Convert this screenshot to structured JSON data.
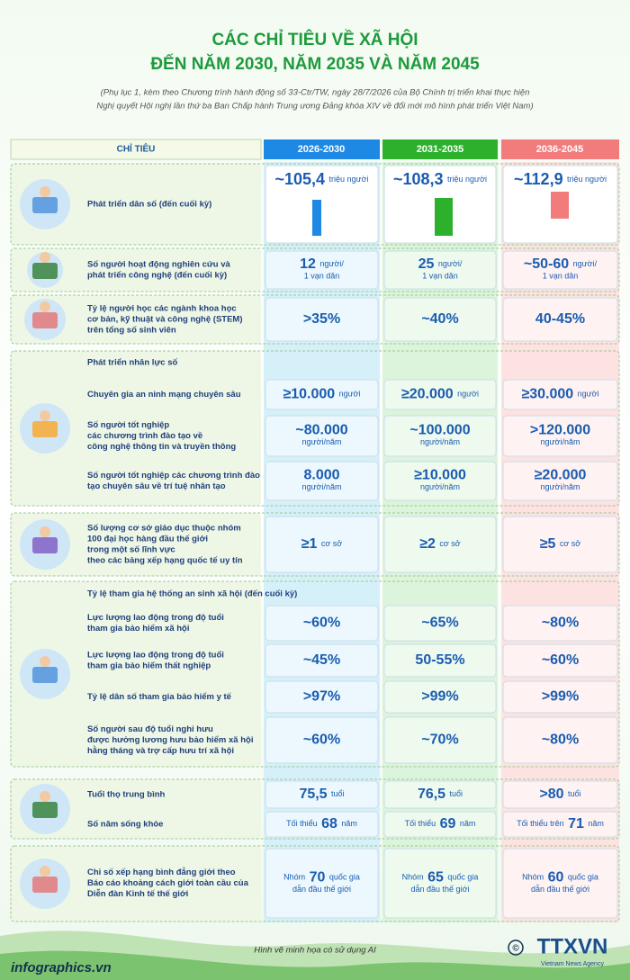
{
  "header": {
    "title": [
      "CÁC CHỈ TIÊU VỀ XÃ HỘI",
      "ĐẾN NĂM 2030, NĂM 2035 VÀ NĂM 2045"
    ],
    "subtitle": [
      "(Phụ lục 1, kèm theo Chương trình hành động số 33-Ctr/TW, ngày 28/7/2026 của Bộ Chính trị triển khai thực hiện",
      "Nghị quyết Hội nghị lần thứ ba Ban Chấp hành Trung ương Đảng khóa XIV về đổi mới mô hình phát triển Việt Nam)"
    ]
  },
  "table": {
    "columns": [
      "CHỈ TIÊU",
      "2026-2030",
      "2031-2035",
      "2036-2045"
    ],
    "groups": [
      {
        "rows": [
          {
            "label": [
              "Phát triển dân số (đến cuối kỳ)"
            ],
            "cells": [
              {
                "value": "~105,4",
                "unit": [
                  "triệu người"
                ]
              },
              {
                "value": "~108,3",
                "unit": [
                  "triệu người"
                ]
              },
              {
                "value": "~112,9",
                "unit": [
                  "triệu người"
                ]
              }
            ]
          }
        ]
      },
      {
        "rows": [
          {
            "label": [
              "Số người hoạt động nghiên cứu và",
              "phát triển công nghệ (đến cuối kỳ)"
            ],
            "cells": [
              {
                "value": "12",
                "unit": [
                  "người/",
                  "1 vạn dân"
                ]
              },
              {
                "value": "25",
                "unit": [
                  "người/",
                  "1 vạn dân"
                ]
              },
              {
                "value": "~50-60",
                "unit": [
                  "người/",
                  "1 vạn dân"
                ]
              }
            ]
          }
        ]
      },
      {
        "rows": [
          {
            "label": [
              "Tỷ lệ người học các ngành khoa học",
              "cơ bản, kỹ thuật và công nghệ (STEM)",
              "trên tổng số sinh viên"
            ],
            "cells": [
              {
                "value": ">35%"
              },
              {
                "value": "~40%"
              },
              {
                "value": "40-45%"
              }
            ]
          }
        ]
      },
      {
        "heading": "Phát triển nhân lực số",
        "rows": [
          {
            "label": [
              "Chuyên gia an ninh mạng chuyên sâu"
            ],
            "cells": [
              {
                "value": "≥10.000",
                "unit": [
                  "người"
                ]
              },
              {
                "value": "≥20.000",
                "unit": [
                  "người"
                ]
              },
              {
                "value": "≥30.000",
                "unit": [
                  "người"
                ]
              }
            ]
          },
          {
            "label": [
              "Số người tốt nghiệp",
              "các chương trình đào tạo về",
              "công nghệ thông tin và truyền thông"
            ],
            "cells": [
              {
                "value": "~80.000",
                "unit": [
                  "người/năm"
                ]
              },
              {
                "value": "~100.000",
                "unit": [
                  "người/năm"
                ]
              },
              {
                "value": ">120.000",
                "unit": [
                  "người/năm"
                ]
              }
            ]
          },
          {
            "label": [
              "Số người tốt nghiệp các chương trình đào",
              "tạo chuyên sâu về trí tuệ nhân tạo"
            ],
            "cells": [
              {
                "value": "8.000",
                "unit": [
                  "người/năm"
                ]
              },
              {
                "value": "≥10.000",
                "unit": [
                  "người/năm"
                ]
              },
              {
                "value": "≥20.000",
                "unit": [
                  "người/năm"
                ]
              }
            ]
          }
        ]
      },
      {
        "rows": [
          {
            "label": [
              "Số lượng cơ sở giáo dục thuộc nhóm",
              "100 đại học hàng đầu thế giới",
              "trong một số lĩnh vực",
              "theo các bảng xếp hạng quốc tế uy tín"
            ],
            "cells": [
              {
                "value": "≥1",
                "unit": [
                  "cơ sở"
                ]
              },
              {
                "value": "≥2",
                "unit": [
                  "cơ sở"
                ]
              },
              {
                "value": "≥5",
                "unit": [
                  "cơ sở"
                ]
              }
            ]
          }
        ]
      },
      {
        "heading": "Tỷ lệ tham gia hệ thống an sinh xã hội (đến cuối kỳ)",
        "rows": [
          {
            "label": [
              "Lực lượng lao động trong độ tuổi",
              "tham gia bảo hiểm xã hội"
            ],
            "cells": [
              {
                "value": "~60%"
              },
              {
                "value": "~65%"
              },
              {
                "value": "~80%"
              }
            ]
          },
          {
            "label": [
              "Lực lượng lao động trong độ tuổi",
              "tham gia bảo hiểm thất nghiệp"
            ],
            "cells": [
              {
                "value": "~45%"
              },
              {
                "value": "50-55%"
              },
              {
                "value": "~60%"
              }
            ]
          },
          {
            "label": [
              "Tỷ lệ dân số tham gia bảo hiểm y tế"
            ],
            "cells": [
              {
                "value": ">97%"
              },
              {
                "value": ">99%"
              },
              {
                "value": ">99%"
              }
            ]
          },
          {
            "label": [
              "Số người sau độ tuổi nghỉ hưu",
              "được hưởng lương hưu bảo hiểm xã hội",
              "hằng tháng và trợ cấp hưu trí xã hội"
            ],
            "cells": [
              {
                "value": "~60%"
              },
              {
                "value": "~70%"
              },
              {
                "value": "~80%"
              }
            ]
          }
        ]
      },
      {
        "rows": [
          {
            "label": [
              "Tuổi thọ trung bình"
            ],
            "cells": [
              {
                "value": "75,5",
                "unit": [
                  "tuổi"
                ]
              },
              {
                "value": "76,5",
                "unit": [
                  "tuổi"
                ]
              },
              {
                "value": ">80",
                "unit": [
                  "tuổi"
                ]
              }
            ]
          },
          {
            "label": [
              "Số năm sống khỏe"
            ],
            "cells": [
              {
                "prefix": "Tối thiểu",
                "value": "68",
                "unit": [
                  "năm"
                ]
              },
              {
                "prefix": "Tối thiểu",
                "value": "69",
                "unit": [
                  "năm"
                ]
              },
              {
                "prefix": "Tối thiểu trên",
                "value": "71",
                "unit": [
                  "năm"
                ]
              }
            ]
          }
        ]
      },
      {
        "rows": [
          {
            "label": [
              "Chỉ số xếp hạng bình đẳng giới theo",
              "Báo cáo khoảng cách giới toàn cầu của",
              "Diễn đàn Kinh tế thế giới"
            ],
            "cells": [
              {
                "prefix": "Nhóm",
                "value": "70",
                "unit": [
                  "quốc gia",
                  "dẫn đầu thế giới"
                ]
              },
              {
                "prefix": "Nhóm",
                "value": "65",
                "unit": [
                  "quốc gia",
                  "dẫn đầu thế giới"
                ]
              },
              {
                "prefix": "Nhóm",
                "value": "60",
                "unit": [
                  "quốc gia",
                  "dẫn đầu thế giới"
                ]
              }
            ]
          }
        ]
      }
    ]
  },
  "footer": {
    "note": "Hình vẽ minh họa có sử dụng AI",
    "site": "infographics.vn",
    "agency": "TTXVN",
    "agency_sub": "Vietnam News Agency"
  }
}
